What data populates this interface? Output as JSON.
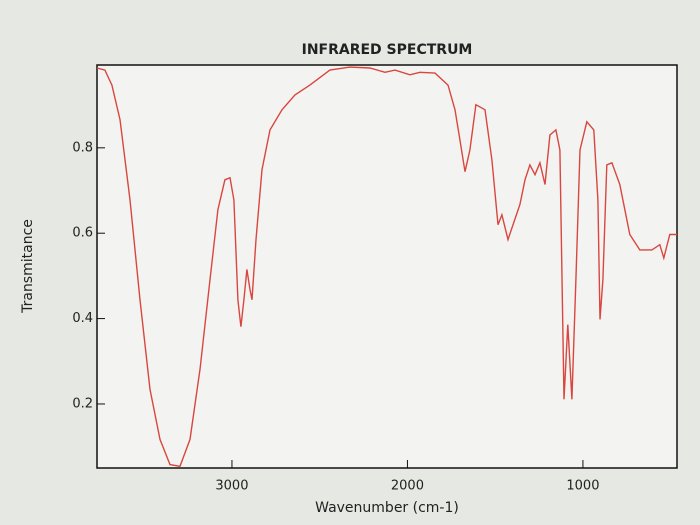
{
  "chart_data": {
    "type": "line",
    "title": "INFRARED SPECTRUM",
    "x_label": "Wavenumber (cm-1)",
    "y_label": "Transmitance",
    "xlim": [
      3769,
      464
    ],
    "ylim": [
      0.05,
      0.994
    ],
    "xticks": [
      3000,
      2000,
      1000
    ],
    "yticks": [
      0.2,
      0.4,
      0.6,
      0.8
    ],
    "grid": false,
    "series": [
      {
        "name": "Transmitance",
        "color": "#d9463f",
        "x": [
          3769,
          3724,
          3684,
          3638,
          3581,
          3524,
          3467,
          3410,
          3353,
          3296,
          3239,
          3182,
          3125,
          3080,
          3040,
          3011,
          2989,
          2966,
          2949,
          2932,
          2915,
          2897,
          2886,
          2863,
          2829,
          2783,
          2715,
          2641,
          2556,
          2442,
          2328,
          2214,
          2128,
          2071,
          1986,
          1929,
          1843,
          1769,
          1729,
          1701,
          1672,
          1644,
          1610,
          1558,
          1519,
          1484,
          1462,
          1427,
          1388,
          1359,
          1330,
          1302,
          1273,
          1245,
          1216,
          1188,
          1154,
          1131,
          1108,
          1086,
          1063,
          1040,
          1017,
          978,
          938,
          915,
          903,
          886,
          864,
          835,
          790,
          733,
          676,
          607,
          562,
          539,
          505,
          464
        ],
        "values": [
          0.987,
          0.982,
          0.947,
          0.866,
          0.678,
          0.444,
          0.234,
          0.117,
          0.058,
          0.054,
          0.117,
          0.281,
          0.491,
          0.655,
          0.725,
          0.73,
          0.678,
          0.444,
          0.381,
          0.444,
          0.515,
          0.468,
          0.444,
          0.585,
          0.749,
          0.842,
          0.889,
          0.924,
          0.947,
          0.982,
          0.989,
          0.987,
          0.977,
          0.982,
          0.971,
          0.977,
          0.975,
          0.947,
          0.889,
          0.819,
          0.744,
          0.795,
          0.901,
          0.889,
          0.772,
          0.62,
          0.643,
          0.585,
          0.632,
          0.667,
          0.725,
          0.76,
          0.737,
          0.765,
          0.714,
          0.83,
          0.842,
          0.795,
          0.211,
          0.386,
          0.211,
          0.491,
          0.795,
          0.861,
          0.842,
          0.678,
          0.398,
          0.491,
          0.76,
          0.765,
          0.714,
          0.597,
          0.561,
          0.561,
          0.573,
          0.542,
          0.597,
          0.597
        ]
      }
    ]
  }
}
